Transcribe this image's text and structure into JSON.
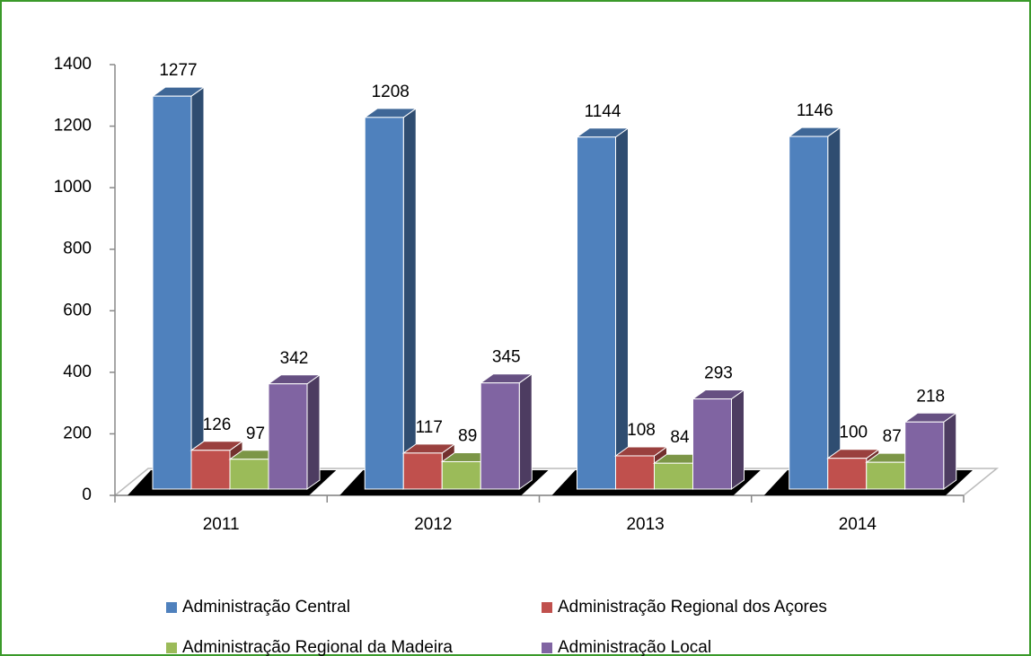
{
  "chart_data": {
    "type": "bar3d",
    "categories": [
      "2011",
      "2012",
      "2013",
      "2014"
    ],
    "series": [
      {
        "name": "Administração Central",
        "color": "#4f81bd",
        "values": [
          1277,
          1208,
          1144,
          1146
        ]
      },
      {
        "name": "Administração Regional dos Açores",
        "color": "#c0504d",
        "values": [
          126,
          117,
          108,
          100
        ]
      },
      {
        "name": "Administração Regional da Madeira",
        "color": "#9bbb59",
        "values": [
          97,
          89,
          84,
          87
        ]
      },
      {
        "name": "Administração Local",
        "color": "#8064a2",
        "values": [
          342,
          345,
          293,
          218
        ]
      }
    ],
    "ylim": [
      0,
      1400
    ],
    "yticks": [
      0,
      200,
      400,
      600,
      800,
      1000,
      1200,
      1400
    ]
  }
}
